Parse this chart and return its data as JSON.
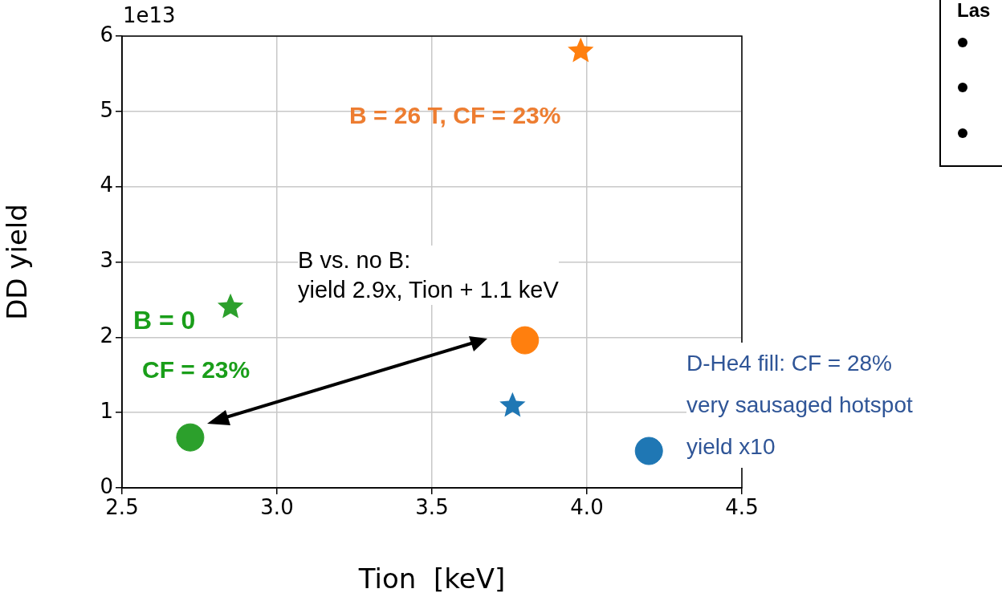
{
  "chart_data": {
    "type": "scatter",
    "xlabel": "Tion  [keV]",
    "ylabel": "DD yield",
    "xlim": [
      2.5,
      4.5
    ],
    "xticks": [
      {
        "value": 2.5,
        "label": "2.5"
      },
      {
        "value": 3,
        "label": "3.0"
      },
      {
        "value": 3.5,
        "label": "3.5"
      },
      {
        "value": 4,
        "label": "4.0"
      },
      {
        "value": 4.5,
        "label": "4.5"
      }
    ],
    "ylim": [
      0,
      6
    ],
    "yticks": [
      0,
      1,
      2,
      3,
      4,
      5,
      6
    ],
    "grid": true,
    "legend": false,
    "series": [
      {
        "color": "#2ca02c",
        "marker": "circle",
        "x": [
          2.72
        ],
        "values": [
          0.67
        ]
      },
      {
        "color": "#2ca02c",
        "marker": "star",
        "x": [
          2.85
        ],
        "values": [
          2.4
        ]
      },
      {
        "color": "#ff7f0e",
        "marker": "circle",
        "x": [
          3.8
        ],
        "values": [
          1.96
        ]
      },
      {
        "color": "#ff7f0e",
        "marker": "star",
        "x": [
          3.98
        ],
        "values": [
          5.8
        ]
      },
      {
        "color": "#1f77b4",
        "marker": "star",
        "x": [
          3.76
        ],
        "values": [
          1.09
        ]
      },
      {
        "color": "#1f77b4",
        "marker": "circle",
        "x": [
          4.2
        ],
        "values": [
          0.49
        ]
      }
    ],
    "annotations": [
      "1e13",
      "B = 26 T, CF = 23%",
      "B = 0",
      "CF = 23%",
      "B vs. no B:\nyield 2.9x, Tion + 1.1 keV",
      "D-He4 fill: CF = 28%\nvery sausaged hotspot\nyield x10",
      "Las"
    ]
  }
}
